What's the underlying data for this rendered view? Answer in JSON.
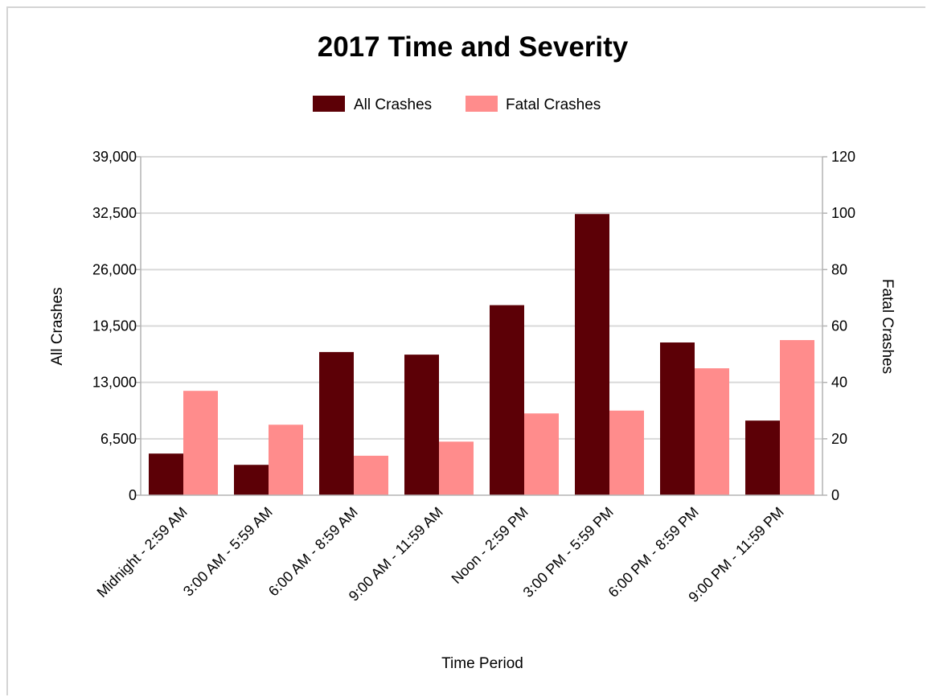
{
  "chart_data": {
    "type": "bar",
    "title": "2017 Time and Severity",
    "xlabel": "Time Period",
    "ylabel": "All Crashes",
    "y2label": "Fatal Crashes",
    "categories": [
      "Midnight - 2:59 AM",
      "3:00 AM - 5:59 AM",
      "6:00 AM - 8:59 AM",
      "9:00 AM - 11:59 AM",
      "Noon - 2:59 PM",
      "3:00 PM - 5:59 PM",
      "6:00 PM - 8:59 PM",
      "9:00 PM - 11:59 PM"
    ],
    "series": [
      {
        "name": "All Crashes",
        "axis": "left",
        "color": "#5c0006",
        "values": [
          4800,
          3500,
          16500,
          16200,
          21900,
          32400,
          17600,
          8600
        ]
      },
      {
        "name": "Fatal Crashes",
        "axis": "right",
        "color": "#ff8c8c",
        "values": [
          37,
          25,
          14,
          19,
          29,
          30,
          45,
          55
        ]
      }
    ],
    "ylim": [
      0,
      39000
    ],
    "y2lim": [
      0,
      120
    ],
    "yticks": [
      "0",
      "6,500",
      "13,000",
      "19,500",
      "26,000",
      "32,500",
      "39,000"
    ],
    "y2ticks": [
      "0",
      "20",
      "40",
      "60",
      "80",
      "100",
      "120"
    ],
    "legend": "top",
    "grid": true
  }
}
